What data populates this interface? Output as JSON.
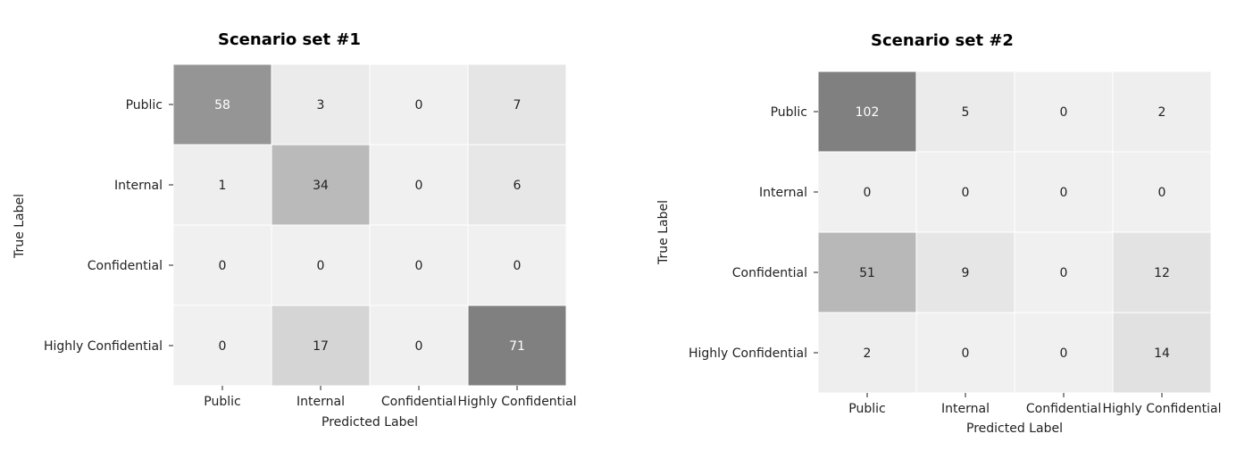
{
  "chart_data": [
    {
      "type": "heatmap",
      "title": "Scenario set #1",
      "xlabel": "Predicted Label",
      "ylabel": "True Label",
      "x_categories": [
        "Public",
        "Internal",
        "Confidential",
        "Highly Confidential"
      ],
      "y_categories": [
        "Public",
        "Internal",
        "Confidential",
        "Highly Confidential"
      ],
      "values": [
        [
          58,
          3,
          0,
          7
        ],
        [
          1,
          34,
          0,
          6
        ],
        [
          0,
          0,
          0,
          0
        ],
        [
          0,
          17,
          0,
          71
        ]
      ],
      "colormap": "greys",
      "colorbar": false
    },
    {
      "type": "heatmap",
      "title": "Scenario set #2",
      "xlabel": "Predicted Label",
      "ylabel": "True Label",
      "x_categories": [
        "Public",
        "Internal",
        "Confidential",
        "Highly Confidential"
      ],
      "y_categories": [
        "Public",
        "Internal",
        "Confidential",
        "Highly Confidential"
      ],
      "values": [
        [
          102,
          5,
          0,
          2
        ],
        [
          0,
          0,
          0,
          0
        ],
        [
          51,
          9,
          0,
          12
        ],
        [
          2,
          0,
          0,
          14
        ]
      ],
      "colormap": "greys",
      "colorbar": false
    }
  ],
  "colors": {
    "cell_low": "#f0f0f0",
    "cell_high": "#808080",
    "grid_line": "#ffffff",
    "text_dark": "#222222",
    "text_light": "#ffffff"
  }
}
